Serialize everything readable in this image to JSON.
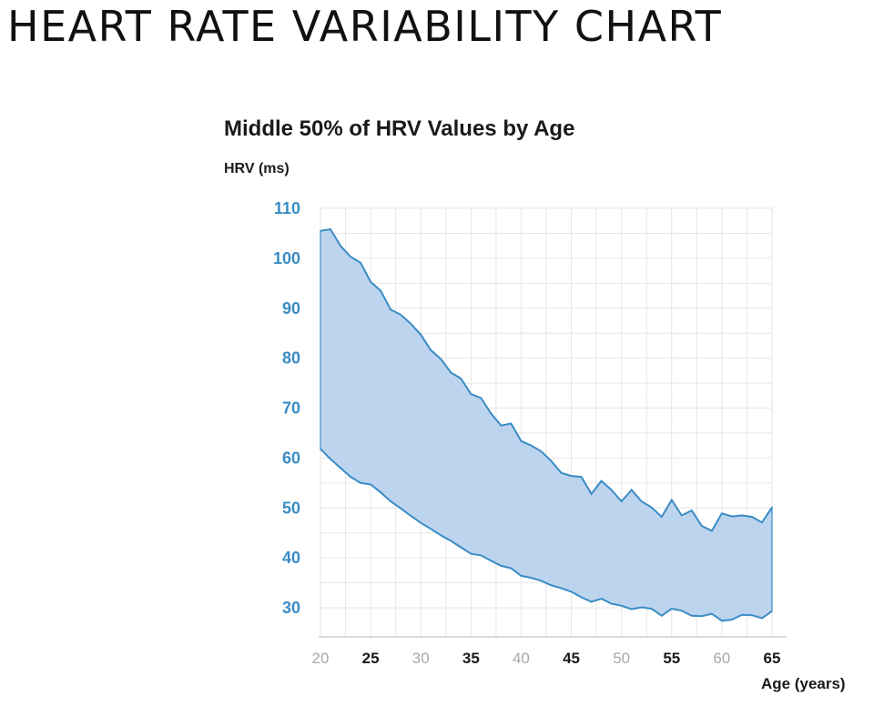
{
  "page": {
    "heading": "HEART RATE VARIABILITY CHART"
  },
  "chart_data": {
    "type": "area",
    "title": "Middle 50% of HRV Values by Age",
    "ylabel": "HRV (ms)",
    "xlabel": "Age (years)",
    "xlim": [
      20,
      65
    ],
    "ylim": [
      26,
      110
    ],
    "yticks": [
      110,
      100,
      90,
      80,
      70,
      60,
      50,
      40,
      30
    ],
    "xticks": [
      20,
      25,
      30,
      35,
      40,
      45,
      50,
      55,
      60,
      65
    ],
    "grid": true,
    "colors": {
      "fill": "#bdd4ef",
      "line": "#3a8cc4",
      "grid": "#e6e6e6"
    },
    "x": [
      20,
      21,
      22,
      23,
      24,
      25,
      26,
      27,
      28,
      29,
      30,
      31,
      32,
      33,
      34,
      35,
      36,
      37,
      38,
      39,
      40,
      41,
      42,
      43,
      44,
      45,
      46,
      47,
      48,
      49,
      50,
      51,
      52,
      53,
      54,
      55,
      56,
      57,
      58,
      59,
      60,
      61,
      62,
      63,
      64,
      65
    ],
    "series": [
      {
        "role": "upper",
        "values": [
          105.5,
          105.8,
          102.5,
          100.3,
          99.1,
          95.3,
          93.5,
          89.7,
          88.7,
          86.9,
          84.7,
          81.6,
          79.8,
          77.1,
          75.9,
          72.8,
          72.0,
          68.9,
          66.5,
          66.9,
          63.4,
          62.5,
          61.3,
          59.4,
          57.0,
          56.4,
          56.2,
          52.8,
          55.4,
          53.6,
          51.3,
          53.6,
          51.3,
          50.1,
          48.2,
          51.6,
          48.5,
          49.5,
          46.4,
          45.4,
          48.9,
          48.3,
          48.5,
          48.2,
          47.1,
          50.1
        ]
      },
      {
        "role": "lower",
        "values": [
          61.8,
          59.8,
          58.0,
          56.2,
          55.0,
          54.7,
          53.1,
          51.3,
          49.9,
          48.4,
          47.0,
          45.8,
          44.5,
          43.4,
          42.1,
          40.8,
          40.5,
          39.4,
          38.4,
          37.9,
          36.4,
          36.0,
          35.4,
          34.5,
          33.9,
          33.2,
          32.1,
          31.2,
          31.8,
          30.8,
          30.4,
          29.7,
          30.1,
          29.8,
          28.4,
          29.8,
          29.4,
          28.4,
          28.3,
          28.8,
          27.4,
          27.6,
          28.6,
          28.5,
          27.9,
          29.3
        ]
      }
    ]
  }
}
